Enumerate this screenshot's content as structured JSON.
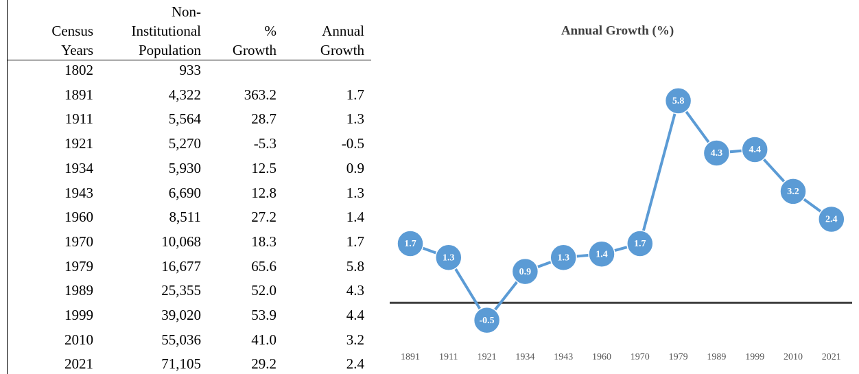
{
  "table": {
    "header": [
      [
        "",
        "Non-",
        "",
        ""
      ],
      [
        "Census",
        "Institutional",
        "%",
        "Annual"
      ],
      [
        "Years",
        "Population",
        "Growth",
        "Growth"
      ]
    ],
    "rows": [
      [
        "1802",
        "933"
      ],
      [
        "1891",
        "4,322",
        "363.2",
        "1.7"
      ],
      [
        "1911",
        "5,564",
        "28.7",
        "1.3"
      ],
      [
        "1921",
        "5,270",
        "-5.3",
        "-0.5"
      ],
      [
        "1934",
        "5,930",
        "12.5",
        "0.9"
      ],
      [
        "1943",
        "6,690",
        "12.8",
        "1.3"
      ],
      [
        "1960",
        "8,511",
        "27.2",
        "1.4"
      ],
      [
        "1970",
        "10,068",
        "18.3",
        "1.7"
      ],
      [
        "1979",
        "16,677",
        "65.6",
        "5.8"
      ],
      [
        "1989",
        "25,355",
        "52.0",
        "4.3"
      ],
      [
        "1999",
        "39,020",
        "53.9",
        "4.4"
      ],
      [
        "2010",
        "55,036",
        "41.0",
        "3.2"
      ],
      [
        "2021",
        "71,105",
        "29.2",
        "2.4"
      ]
    ]
  },
  "chart_data": {
    "type": "line",
    "title": "Annual Growth (%)",
    "categories": [
      "1891",
      "1911",
      "1921",
      "1934",
      "1943",
      "1960",
      "1970",
      "1979",
      "1989",
      "1999",
      "2010",
      "2021"
    ],
    "values": [
      1.7,
      1.3,
      -0.5,
      0.9,
      1.3,
      1.4,
      1.7,
      5.8,
      4.3,
      4.4,
      3.2,
      2.4
    ],
    "color": "#5b9bd5",
    "ylim": [
      -1,
      7
    ]
  }
}
